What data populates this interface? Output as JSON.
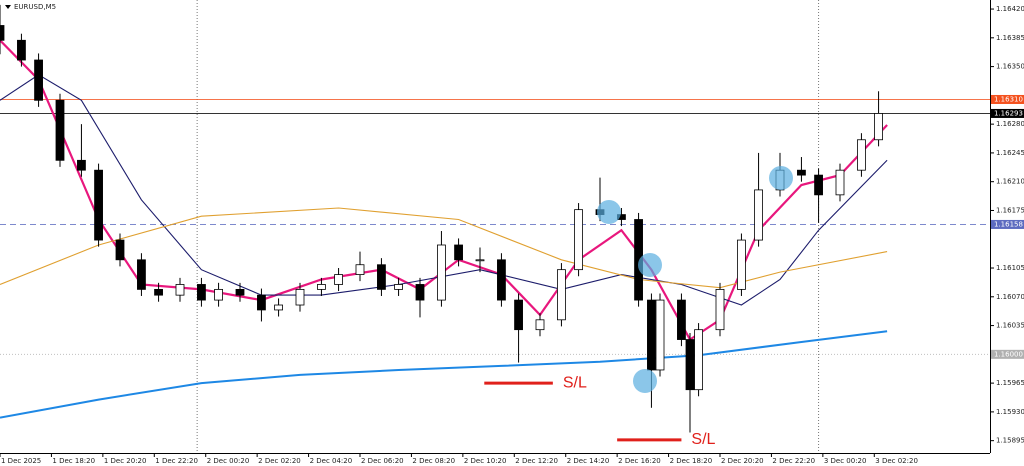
{
  "chart_data": {
    "type": "candlestick",
    "title": "EURUSD,M5",
    "x": [
      0,
      5,
      9,
      14,
      19,
      23,
      28,
      33,
      37,
      42,
      47,
      51,
      56,
      61,
      65,
      70,
      75,
      79,
      84,
      89,
      93,
      98,
      103,
      107,
      112,
      117,
      121,
      126,
      131,
      135,
      140,
      145,
      149,
      152,
      154,
      159,
      161,
      163,
      168,
      173,
      177,
      182,
      187,
      191,
      196,
      201,
      205
    ],
    "open": [
      1.164,
      1.16382,
      1.16358,
      1.16309,
      1.16236,
      1.16224,
      1.16139,
      1.16115,
      1.16079,
      1.16072,
      1.16085,
      1.16066,
      1.16079,
      1.16072,
      1.16054,
      1.1606,
      1.16079,
      1.16085,
      1.16097,
      1.16109,
      1.16079,
      1.16085,
      1.16066,
      1.16133,
      1.16115,
      1.16115,
      1.16066,
      1.1603,
      1.16042,
      1.16103,
      1.16176,
      1.1617,
      1.16164,
      1.16066,
      1.15981,
      1.16066,
      1.16018,
      1.15957,
      1.1603,
      1.16079,
      1.16139,
      1.162,
      1.16224,
      1.16218,
      1.16194,
      1.16224,
      1.16261
    ],
    "high": [
      1.16425,
      1.1639,
      1.16366,
      1.16317,
      1.1628,
      1.16232,
      1.16147,
      1.16123,
      1.16087,
      1.16093,
      1.16093,
      1.16087,
      1.16087,
      1.1608,
      1.16068,
      1.16087,
      1.16093,
      1.16105,
      1.16125,
      1.16117,
      1.16093,
      1.16093,
      1.1615,
      1.16141,
      1.1613,
      1.16123,
      1.16074,
      1.1605,
      1.16111,
      1.16184,
      1.16215,
      1.16178,
      1.16172,
      1.16074,
      1.16074,
      1.16074,
      1.16026,
      1.16038,
      1.16087,
      1.16147,
      1.16245,
      1.16245,
      1.1624,
      1.16226,
      1.16232,
      1.16269,
      1.1632
    ],
    "low": [
      1.16365,
      1.1635,
      1.16301,
      1.16228,
      1.16216,
      1.16131,
      1.16107,
      1.16071,
      1.16064,
      1.16064,
      1.16058,
      1.16058,
      1.16064,
      1.1604,
      1.16046,
      1.16052,
      1.16071,
      1.16077,
      1.16089,
      1.16071,
      1.16071,
      1.16045,
      1.16058,
      1.16107,
      1.161,
      1.16058,
      1.1599,
      1.16022,
      1.16034,
      1.16095,
      1.16162,
      1.16156,
      1.16058,
      1.15935,
      1.15973,
      1.1601,
      1.15905,
      1.15949,
      1.16022,
      1.16071,
      1.16131,
      1.16192,
      1.1621,
      1.1616,
      1.16186,
      1.16216,
      1.16253
    ],
    "close": [
      1.16382,
      1.16358,
      1.16309,
      1.16236,
      1.16224,
      1.16139,
      1.16115,
      1.16079,
      1.16072,
      1.16085,
      1.16066,
      1.16079,
      1.16072,
      1.16054,
      1.1606,
      1.16079,
      1.16085,
      1.16097,
      1.16109,
      1.16079,
      1.16085,
      1.16066,
      1.16133,
      1.16115,
      1.16115,
      1.16066,
      1.1603,
      1.16042,
      1.16103,
      1.16176,
      1.1617,
      1.16164,
      1.16066,
      1.15981,
      1.16066,
      1.16018,
      1.15957,
      1.1603,
      1.16079,
      1.16139,
      1.162,
      1.16224,
      1.16218,
      1.16194,
      1.16224,
      1.16261,
      1.16293
    ],
    "up_color": "#ffffff",
    "down_color": "#000000",
    "wick_color": "#000000",
    "lines": [
      {
        "color": "#e8177d",
        "x": [
          0,
          9,
          23,
          33,
          47,
          61,
          75,
          89,
          98,
          107,
          117,
          126,
          135,
          145,
          152,
          161,
          168,
          177,
          187,
          196,
          207
        ],
        "values": [
          1.16382,
          1.16334,
          1.16164,
          1.16085,
          1.16079,
          1.16066,
          1.16091,
          1.16103,
          1.16079,
          1.16115,
          1.16097,
          1.16048,
          1.16115,
          1.16151,
          1.16103,
          1.16018,
          1.16042,
          1.16151,
          1.16206,
          1.16218,
          1.16279
        ]
      },
      {
        "color": "#1c1c6b",
        "x": [
          0,
          9,
          19,
          33,
          47,
          61,
          75,
          93,
          112,
          131,
          145,
          159,
          173,
          182,
          191,
          207
        ],
        "values": [
          1.16309,
          1.1634,
          1.16309,
          1.16188,
          1.16103,
          1.16072,
          1.16072,
          1.16085,
          1.16103,
          1.16079,
          1.16097,
          1.16085,
          1.1606,
          1.16091,
          1.16151,
          1.16236
        ]
      },
      {
        "color": "#e0a030",
        "x": [
          0,
          23,
          47,
          79,
          107,
          131,
          149,
          168,
          182,
          207
        ],
        "values": [
          1.16085,
          1.16133,
          1.16168,
          1.16178,
          1.16164,
          1.16115,
          1.16091,
          1.16081,
          1.161,
          1.16125
        ]
      },
      {
        "color": "#1e88e5",
        "x": [
          0,
          23,
          47,
          70,
          93,
          117,
          140,
          163,
          187,
          207
        ],
        "values": [
          1.15923,
          1.15945,
          1.15965,
          1.15975,
          1.15981,
          1.15986,
          1.15991,
          1.15999,
          1.16015,
          1.16028
        ]
      }
    ],
    "levels": [
      {
        "value": 1.1631,
        "label": "1.16310",
        "color": "#f4511e",
        "style": "solid"
      },
      {
        "value": 1.16293,
        "label": "1.16293",
        "color": "#000000",
        "style": "solid"
      },
      {
        "value": 1.16158,
        "label": "1.16158",
        "color": "#5c6bc0",
        "style": "dashed"
      },
      {
        "value": 1.16,
        "label": "1.16000",
        "color": "#b0b0b0",
        "style": "dotted"
      }
    ],
    "vlines": [
      46,
      191
    ],
    "annotations": [
      {
        "text": "S/L",
        "value": 1.15965,
        "x": [
          113,
          129
        ]
      },
      {
        "text": "S/L",
        "value": 1.15896,
        "x": [
          144,
          159
        ]
      }
    ],
    "xlim": [
      0,
      231
    ],
    "ylim": [
      1.1588,
      1.16431
    ],
    "xticks": [
      {
        "value": 0,
        "label": "1 Dec 2025"
      },
      {
        "value": 12,
        "label": "1 Dec 18:20"
      },
      {
        "value": 24,
        "label": "1 Dec 20:20"
      },
      {
        "value": 36,
        "label": "1 Dec 22:20"
      },
      {
        "value": 48,
        "label": "2 Dec 00:20"
      },
      {
        "value": 60,
        "label": "2 Dec 02:20"
      },
      {
        "value": 72,
        "label": "2 Dec 04:20"
      },
      {
        "value": 84,
        "label": "2 Dec 06:20"
      },
      {
        "value": 96,
        "label": "2 Dec 08:20"
      },
      {
        "value": 108,
        "label": "2 Dec 10:20"
      },
      {
        "value": 120,
        "label": "2 Dec 12:20"
      },
      {
        "value": 132,
        "label": "2 Dec 14:20"
      },
      {
        "value": 144,
        "label": "2 Dec 16:20"
      },
      {
        "value": 156,
        "label": "2 Dec 18:20"
      },
      {
        "value": 168,
        "label": "2 Dec 20:20"
      },
      {
        "value": 180,
        "label": "2 Dec 22:20"
      },
      {
        "value": 192,
        "label": "3 Dec 00:20"
      },
      {
        "value": 204,
        "label": "3 Dec 02:20"
      }
    ],
    "yticks": [
      {
        "value": 1.1642,
        "label": "1.16420"
      },
      {
        "value": 1.16385,
        "label": "1.16385"
      },
      {
        "value": 1.1635,
        "label": "1.16350"
      },
      {
        "value": 1.1628,
        "label": "1.16280"
      },
      {
        "value": 1.16245,
        "label": "1.16245"
      },
      {
        "value": 1.1621,
        "label": "1.16210"
      },
      {
        "value": 1.16175,
        "label": "1.16175"
      },
      {
        "value": 1.16105,
        "label": "1.16105"
      },
      {
        "value": 1.1607,
        "label": "1.16070"
      },
      {
        "value": 1.16035,
        "label": "1.16035"
      },
      {
        "value": 1.15965,
        "label": "1.15965"
      },
      {
        "value": 1.1593,
        "label": "1.15930"
      },
      {
        "value": 1.15895,
        "label": "1.15895"
      }
    ]
  }
}
